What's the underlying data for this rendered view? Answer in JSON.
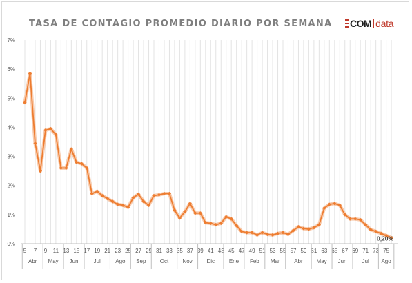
{
  "header": {
    "title": "TASA DE CONTAGIO PROMEDIO DIARIO POR SEMANA",
    "logo": {
      "ecom": "COM",
      "data": "data",
      "accent_color": "#c0392b"
    }
  },
  "chart_data": {
    "type": "line",
    "title": "TASA DE CONTAGIO PROMEDIO DIARIO POR SEMANA",
    "xlabel": "",
    "ylabel": "",
    "ylim": [
      0,
      7
    ],
    "yticks": [
      "0%",
      "1%",
      "2%",
      "3%",
      "4%",
      "5%",
      "6%",
      "7%"
    ],
    "grid": {
      "vertical": true,
      "horizontal": false
    },
    "line_color": "#ed7d31",
    "x_weeks": [
      5,
      6,
      7,
      8,
      9,
      10,
      11,
      12,
      13,
      14,
      15,
      16,
      17,
      18,
      19,
      20,
      21,
      22,
      23,
      24,
      25,
      26,
      27,
      28,
      29,
      30,
      31,
      32,
      33,
      34,
      35,
      36,
      37,
      38,
      39,
      40,
      41,
      42,
      43,
      44,
      45,
      46,
      47,
      48,
      49,
      50,
      51,
      52,
      53,
      54,
      55,
      56,
      57,
      58,
      59,
      60,
      61,
      62,
      63,
      64,
      65,
      66,
      67,
      68,
      69,
      70,
      71,
      72,
      73,
      74,
      75,
      76
    ],
    "x_tick_labels": [
      "5",
      "7",
      "9",
      "11",
      "13",
      "15",
      "17",
      "19",
      "21",
      "23",
      "25",
      "27",
      "29",
      "31",
      "33",
      "35",
      "37",
      "39",
      "41",
      "43",
      "45",
      "47",
      "49",
      "51",
      "53",
      "55",
      "57",
      "59",
      "61",
      "63",
      "65",
      "67",
      "69",
      "71",
      "73",
      "75"
    ],
    "x_months": [
      {
        "label": "Abr",
        "from": 5,
        "to": 9
      },
      {
        "label": "May",
        "from": 9,
        "to": 13
      },
      {
        "label": "Jun",
        "from": 13,
        "to": 17
      },
      {
        "label": "Jul",
        "from": 17,
        "to": 22
      },
      {
        "label": "Ago",
        "from": 22,
        "to": 26
      },
      {
        "label": "Sep",
        "from": 26,
        "to": 30
      },
      {
        "label": "Oct",
        "from": 30,
        "to": 35
      },
      {
        "label": "Nov",
        "from": 35,
        "to": 39
      },
      {
        "label": "Dic",
        "from": 39,
        "to": 44
      },
      {
        "label": "Ene",
        "from": 44,
        "to": 48
      },
      {
        "label": "Feb",
        "from": 48,
        "to": 52
      },
      {
        "label": "Mar",
        "from": 52,
        "to": 56
      },
      {
        "label": "Abr",
        "from": 56,
        "to": 61
      },
      {
        "label": "May",
        "from": 61,
        "to": 65
      },
      {
        "label": "Jun",
        "from": 65,
        "to": 69
      },
      {
        "label": "Jul",
        "from": 69,
        "to": 74
      },
      {
        "label": "Ago",
        "from": 74,
        "to": 77
      }
    ],
    "series": [
      {
        "values": [
          4.85,
          5.85,
          3.45,
          2.5,
          3.9,
          3.95,
          3.75,
          2.6,
          2.6,
          3.25,
          2.8,
          2.75,
          2.6,
          1.72,
          1.8,
          1.65,
          1.55,
          1.45,
          1.35,
          1.32,
          1.25,
          1.58,
          1.7,
          1.45,
          1.32,
          1.65,
          1.68,
          1.72,
          1.72,
          1.15,
          0.88,
          1.1,
          1.38,
          1.05,
          1.05,
          0.72,
          0.7,
          0.65,
          0.7,
          0.92,
          0.85,
          0.62,
          0.42,
          0.38,
          0.38,
          0.3,
          0.38,
          0.32,
          0.3,
          0.35,
          0.38,
          0.32,
          0.45,
          0.58,
          0.52,
          0.5,
          0.55,
          0.65,
          1.22,
          1.35,
          1.38,
          1.32,
          1.0,
          0.85,
          0.85,
          0.82,
          0.65,
          0.48,
          0.42,
          0.35,
          0.28,
          0.2
        ]
      }
    ],
    "annotations": [
      {
        "x": 76,
        "text": "0,20%"
      }
    ]
  }
}
